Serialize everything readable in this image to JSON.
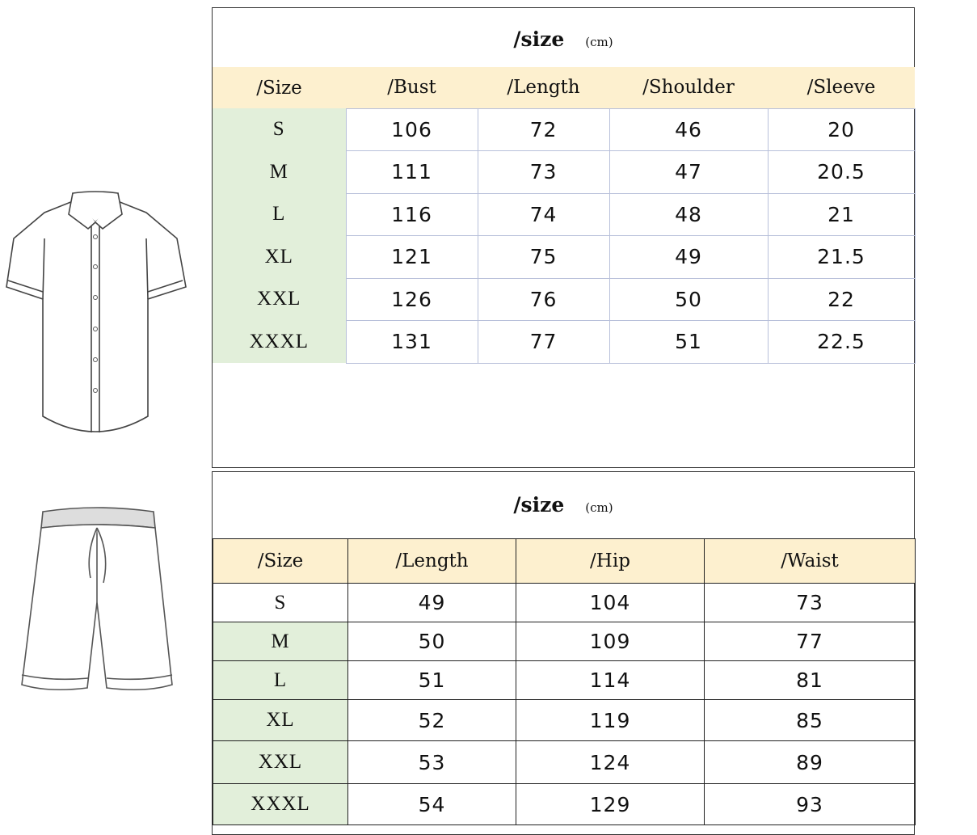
{
  "shirt_chart": {
    "title": "/size",
    "unit": "(cm)",
    "headers": [
      "/Size",
      "/Bust",
      "/Length",
      "/Shoulder",
      "/Sleeve"
    ],
    "rows": [
      [
        "S",
        "106",
        "72",
        "46",
        "20"
      ],
      [
        "M",
        "111",
        "73",
        "47",
        "20.5"
      ],
      [
        "L",
        "116",
        "74",
        "48",
        "21"
      ],
      [
        "XL",
        "121",
        "75",
        "49",
        "21.5"
      ],
      [
        "XXL",
        "126",
        "76",
        "50",
        "22"
      ],
      [
        "XXXL",
        "131",
        "77",
        "51",
        "22.5"
      ]
    ]
  },
  "shorts_chart": {
    "title": "/size",
    "unit": "(cm)",
    "headers": [
      "/Size",
      "/Length",
      "/Hip",
      "/Waist"
    ],
    "rows": [
      [
        "S",
        "49",
        "104",
        "73"
      ],
      [
        "M",
        "50",
        "109",
        "77"
      ],
      [
        "L",
        "51",
        "114",
        "81"
      ],
      [
        "XL",
        "52",
        "119",
        "85"
      ],
      [
        "XXL",
        "53",
        "124",
        "89"
      ],
      [
        "XXXL",
        "54",
        "129",
        "93"
      ]
    ]
  },
  "colors": {
    "header_bg": "#fdf0cf",
    "size_col_bg": "#e2efda",
    "grid_top": "#b8c0da"
  }
}
